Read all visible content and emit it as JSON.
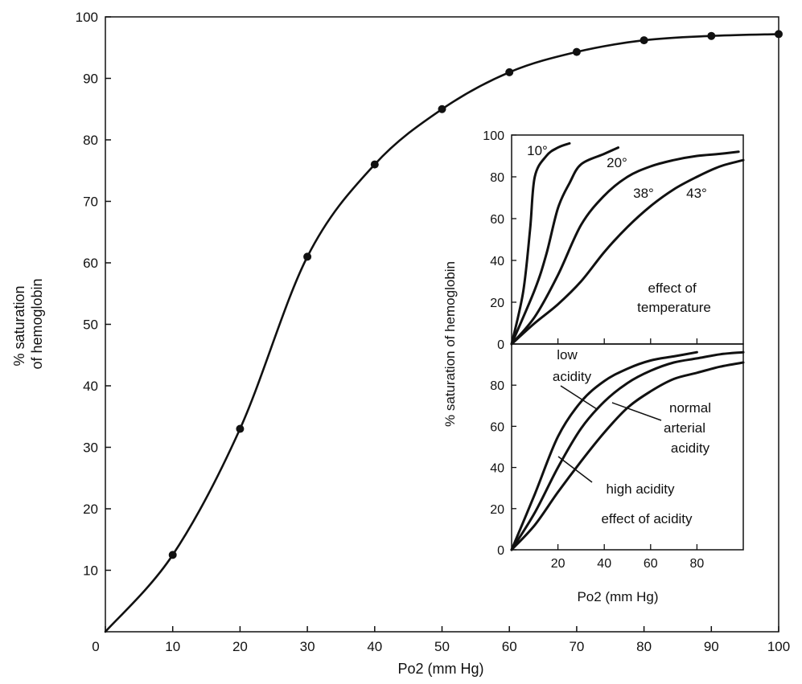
{
  "chart_data": [
    {
      "type": "line",
      "title": "",
      "xlabel": "Po2 (mm Hg)",
      "ylabel": [
        "% saturation",
        "of hemoglobin"
      ],
      "xlim": [
        0,
        100
      ],
      "ylim": [
        0,
        100
      ],
      "xticks": [
        "0",
        "10",
        "20",
        "30",
        "40",
        "50",
        "60",
        "70",
        "80",
        "90",
        "100"
      ],
      "yticks": [
        "10",
        "20",
        "30",
        "40",
        "50",
        "60",
        "70",
        "80",
        "90",
        "100"
      ],
      "grid": false,
      "series": [
        {
          "x": [
            0,
            10,
            20,
            30,
            40,
            50,
            60,
            70,
            80,
            90,
            100
          ],
          "y": [
            0,
            12.5,
            33,
            61,
            76,
            85,
            91,
            94.3,
            96.2,
            96.9,
            97.2
          ]
        }
      ]
    },
    {
      "type": "line",
      "title": "",
      "annotation": [
        "effect of",
        "temperature"
      ],
      "ylabel": "% saturation of hemoglobin",
      "xlim": [
        0,
        100
      ],
      "ylim": [
        0,
        100
      ],
      "yticks": [
        "0",
        "20",
        "40",
        "60",
        "80",
        "100"
      ],
      "series": [
        {
          "name": "10°",
          "x": [
            0,
            5,
            8,
            10,
            15,
            20,
            25
          ],
          "y": [
            0,
            25,
            55,
            80,
            90,
            94,
            96
          ]
        },
        {
          "name": "20°",
          "x": [
            0,
            10,
            15,
            20,
            25,
            30,
            40,
            46
          ],
          "y": [
            0,
            26,
            43,
            65,
            77,
            86,
            91,
            94
          ]
        },
        {
          "name": "38°",
          "x": [
            0,
            10,
            20,
            30,
            40,
            50,
            60,
            70,
            80,
            90,
            98
          ],
          "y": [
            0,
            13,
            33,
            57,
            71,
            80,
            85,
            88,
            90,
            91,
            92
          ]
        },
        {
          "name": "43°",
          "x": [
            0,
            10,
            20,
            30,
            40,
            50,
            60,
            70,
            80,
            90,
            100
          ],
          "y": [
            0,
            10,
            19,
            30,
            44,
            56,
            66,
            74,
            80,
            85,
            88
          ]
        }
      ]
    },
    {
      "type": "line",
      "title": "",
      "annotation": "effect of acidity",
      "xlabel": "Po2 (mm Hg)",
      "xlim": [
        0,
        100
      ],
      "ylim": [
        0,
        100
      ],
      "xticks": [
        "20",
        "40",
        "60",
        "80"
      ],
      "yticks": [
        "0",
        "20",
        "40",
        "60",
        "80"
      ],
      "series": [
        {
          "name": "low acidity",
          "x": [
            0,
            10,
            20,
            30,
            40,
            50,
            60,
            70,
            80
          ],
          "y": [
            0,
            27,
            55,
            72,
            82,
            88,
            92,
            94,
            96
          ]
        },
        {
          "name": "normal arterial acidity",
          "x": [
            0,
            10,
            20,
            30,
            40,
            50,
            60,
            70,
            80,
            90,
            100
          ],
          "y": [
            0,
            18,
            40,
            59,
            72,
            81,
            87,
            91,
            93,
            95,
            96
          ]
        },
        {
          "name": "high acidity",
          "x": [
            0,
            10,
            20,
            30,
            40,
            50,
            60,
            70,
            80,
            90,
            100
          ],
          "y": [
            0,
            12,
            28,
            43,
            57,
            69,
            77,
            83,
            86,
            89,
            91
          ]
        }
      ]
    }
  ]
}
